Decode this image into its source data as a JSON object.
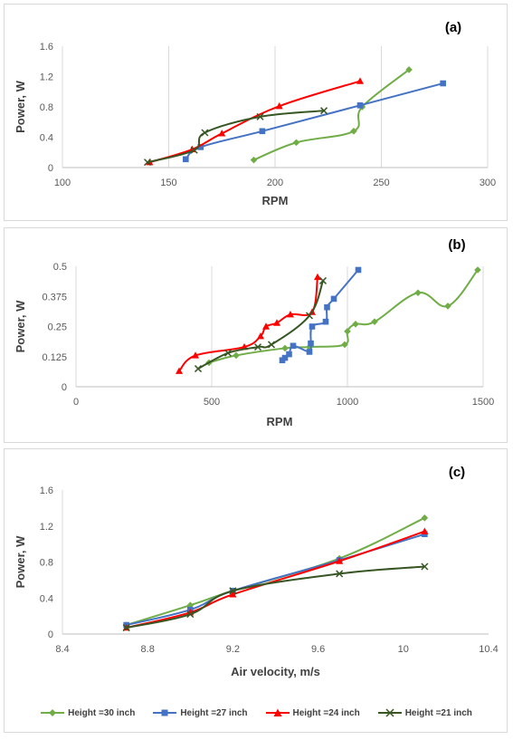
{
  "chart_data": [
    {
      "type": "scatter",
      "panel_label": "(a)",
      "xlabel": "RPM",
      "ylabel": "Power, W",
      "xlim": [
        100,
        300
      ],
      "ylim": [
        0,
        1.6
      ],
      "xticks": [
        "100",
        "150",
        "200",
        "250",
        "300"
      ],
      "yticks": [
        "0",
        "0.4",
        "0.8",
        "1.2",
        "1.6"
      ],
      "grid": "vertical",
      "series": [
        {
          "name": "Height =30 inch",
          "color": "#70ad47",
          "marker": "diamond",
          "points": [
            [
              190,
              0.1
            ],
            [
              210,
              0.33
            ],
            [
              237,
              0.48
            ],
            [
              241,
              0.8
            ],
            [
              263,
              1.29
            ]
          ]
        },
        {
          "name": "Height =27 inch",
          "color": "#4472c4",
          "marker": "square",
          "points": [
            [
              158,
              0.11
            ],
            [
              165,
              0.27
            ],
            [
              194,
              0.48
            ],
            [
              240,
              0.82
            ],
            [
              279,
              1.11
            ]
          ]
        },
        {
          "name": "Height =24 inch",
          "color": "#ff0000",
          "marker": "triangle",
          "points": [
            [
              141,
              0.07
            ],
            [
              161,
              0.24
            ],
            [
              175,
              0.45
            ],
            [
              202,
              0.81
            ],
            [
              240,
              1.14
            ]
          ]
        },
        {
          "name": "Height =21 inch",
          "color": "#375623",
          "marker": "x",
          "points": [
            [
              140,
              0.07
            ],
            [
              162,
              0.23
            ],
            [
              167,
              0.46
            ],
            [
              193,
              0.67
            ],
            [
              223,
              0.75
            ]
          ]
        }
      ]
    },
    {
      "type": "scatter",
      "panel_label": "(b)",
      "xlabel": "RPM",
      "ylabel": "Power, W",
      "xlim": [
        0,
        1500
      ],
      "ylim": [
        0,
        0.5
      ],
      "xticks": [
        "0",
        "500",
        "1000",
        "1500"
      ],
      "yticks": [
        "0",
        "0.125",
        "0.25",
        "0.375",
        "0.5"
      ],
      "grid": "vertical",
      "series": [
        {
          "name": "Height =30 inch",
          "color": "#70ad47",
          "marker": "diamond",
          "points": [
            [
              490,
              0.1
            ],
            [
              590,
              0.13
            ],
            [
              770,
              0.16
            ],
            [
              860,
              0.165
            ],
            [
              990,
              0.175
            ],
            [
              1000,
              0.23
            ],
            [
              1030,
              0.26
            ],
            [
              1100,
              0.27
            ],
            [
              1260,
              0.39
            ],
            [
              1370,
              0.335
            ],
            [
              1480,
              0.485
            ]
          ]
        },
        {
          "name": "Height =27 inch",
          "color": "#4472c4",
          "marker": "square",
          "points": [
            [
              760,
              0.11
            ],
            [
              770,
              0.12
            ],
            [
              785,
              0.135
            ],
            [
              800,
              0.17
            ],
            [
              860,
              0.145
            ],
            [
              865,
              0.18
            ],
            [
              870,
              0.25
            ],
            [
              920,
              0.27
            ],
            [
              925,
              0.33
            ],
            [
              950,
              0.365
            ],
            [
              1040,
              0.485
            ]
          ]
        },
        {
          "name": "Height =24 inch",
          "color": "#ff0000",
          "marker": "triangle",
          "points": [
            [
              380,
              0.065
            ],
            [
              440,
              0.13
            ],
            [
              620,
              0.165
            ],
            [
              680,
              0.21
            ],
            [
              700,
              0.25
            ],
            [
              740,
              0.265
            ],
            [
              790,
              0.3
            ],
            [
              870,
              0.31
            ],
            [
              890,
              0.455
            ]
          ]
        },
        {
          "name": "Height =21 inch",
          "color": "#375623",
          "marker": "x",
          "points": [
            [
              450,
              0.075
            ],
            [
              560,
              0.14
            ],
            [
              670,
              0.165
            ],
            [
              720,
              0.175
            ],
            [
              860,
              0.295
            ],
            [
              910,
              0.44
            ]
          ]
        }
      ]
    },
    {
      "type": "line",
      "panel_label": "(c)",
      "xlabel": "Air velocity, m/s",
      "ylabel": "Power, W",
      "xlim": [
        8.4,
        10.4
      ],
      "ylim": [
        0,
        1.6
      ],
      "xticks": [
        "8.4",
        "8.8",
        "9.2",
        "9.6",
        "10",
        "10.4"
      ],
      "yticks": [
        "0",
        "0.4",
        "0.8",
        "1.2",
        "1.6"
      ],
      "grid": "none",
      "legend": "bottom",
      "series": [
        {
          "name": "Height =30 inch",
          "color": "#70ad47",
          "marker": "diamond",
          "points": [
            [
              8.7,
              0.1
            ],
            [
              9.0,
              0.32
            ],
            [
              9.2,
              0.48
            ],
            [
              9.7,
              0.84
            ],
            [
              10.1,
              1.29
            ]
          ]
        },
        {
          "name": "Height =27 inch",
          "color": "#4472c4",
          "marker": "square",
          "points": [
            [
              8.7,
              0.1
            ],
            [
              9.0,
              0.27
            ],
            [
              9.2,
              0.48
            ],
            [
              9.7,
              0.82
            ],
            [
              10.1,
              1.11
            ]
          ]
        },
        {
          "name": "Height =24 inch",
          "color": "#ff0000",
          "marker": "triangle",
          "points": [
            [
              8.7,
              0.07
            ],
            [
              9.0,
              0.24
            ],
            [
              9.2,
              0.44
            ],
            [
              9.7,
              0.81
            ],
            [
              10.1,
              1.14
            ]
          ]
        },
        {
          "name": "Height =21 inch",
          "color": "#375623",
          "marker": "x",
          "points": [
            [
              8.7,
              0.07
            ],
            [
              9.0,
              0.22
            ],
            [
              9.2,
              0.48
            ],
            [
              9.7,
              0.67
            ],
            [
              10.1,
              0.75
            ]
          ]
        }
      ]
    }
  ],
  "legend": {
    "items": [
      {
        "label": "Height =30 inch",
        "color": "#70ad47",
        "marker": "diamond"
      },
      {
        "label": "Height =27 inch",
        "color": "#4472c4",
        "marker": "square"
      },
      {
        "label": "Height =24 inch",
        "color": "#ff0000",
        "marker": "triangle"
      },
      {
        "label": "Height =21 inch",
        "color": "#375623",
        "marker": "x"
      }
    ]
  }
}
